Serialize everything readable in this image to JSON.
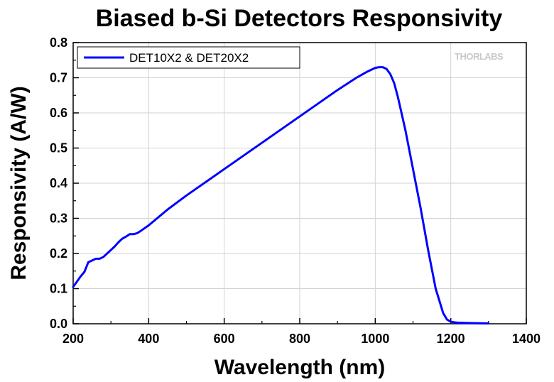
{
  "chart_data": {
    "type": "line",
    "title": "Biased b-Si Detectors Responsivity",
    "xlabel": "Wavelength (nm)",
    "ylabel": "Responsivity (A/W)",
    "xlim": [
      200,
      1400
    ],
    "ylim": [
      0.0,
      0.8
    ],
    "xticks": [
      "200",
      "400",
      "600",
      "800",
      "1000",
      "1200",
      "1400"
    ],
    "yticks": [
      "0.0",
      "0.1",
      "0.2",
      "0.3",
      "0.4",
      "0.5",
      "0.6",
      "0.7",
      "0.8"
    ],
    "grid": true,
    "legend_position": "top-left",
    "watermark": "THORLABS",
    "series": [
      {
        "name": "DET10X2 & DET20X2",
        "color": "#0000ff",
        "x": [
          200,
          210,
          220,
          230,
          240,
          250,
          260,
          270,
          280,
          290,
          300,
          310,
          320,
          330,
          340,
          350,
          360,
          370,
          380,
          400,
          450,
          500,
          600,
          700,
          800,
          900,
          950,
          980,
          1000,
          1010,
          1020,
          1030,
          1040,
          1050,
          1060,
          1080,
          1100,
          1120,
          1140,
          1160,
          1180,
          1190,
          1200,
          1210,
          1220,
          1250,
          1300
        ],
        "y": [
          0.105,
          0.12,
          0.135,
          0.148,
          0.175,
          0.18,
          0.185,
          0.185,
          0.19,
          0.2,
          0.21,
          0.22,
          0.232,
          0.242,
          0.248,
          0.255,
          0.255,
          0.258,
          0.265,
          0.28,
          0.325,
          0.365,
          0.44,
          0.515,
          0.59,
          0.665,
          0.7,
          0.718,
          0.728,
          0.73,
          0.73,
          0.725,
          0.71,
          0.685,
          0.645,
          0.55,
          0.44,
          0.33,
          0.21,
          0.1,
          0.03,
          0.012,
          0.006,
          0.004,
          0.003,
          0.002,
          0.001
        ]
      }
    ]
  }
}
